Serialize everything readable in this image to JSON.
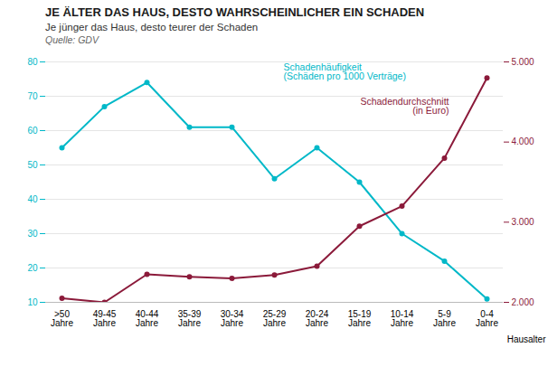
{
  "chart_data": {
    "type": "line",
    "title": "JE ÄLTER DAS HAUS, DESTO WAHRSCHEINLICHER EIN SCHADEN",
    "subtitle": "Je jünger das Haus, desto teurer der Schaden",
    "source": "Quelle: GDV",
    "x_label": "Hausalter",
    "categories": [
      ">50\nJahre",
      "49-45\nJahre",
      "40-44\nJahre",
      "35-39\nJahre",
      "30-34\nJahre",
      "25-29\nJahre",
      "20-24\nJahre",
      "15-19\nJahre",
      "10-14\nJahre",
      "5-9\nJahre",
      "0-4\nJahre"
    ],
    "series": [
      {
        "name": "Schadenhäufigkeit\n(Schäden pro 1000 Verträge)",
        "color": "#00B8C8",
        "marker": "circle",
        "values": [
          55,
          67,
          74,
          61,
          61,
          46,
          55,
          45,
          30,
          22,
          11
        ]
      },
      {
        "name": "Schadendurchschnitt\n(in Euro)",
        "color": "#8B1A3A",
        "marker": "circle",
        "axis": "y2",
        "values": [
          2050,
          2000,
          2350,
          2320,
          2300,
          2340,
          2450,
          2950,
          3200,
          3800,
          4800
        ]
      }
    ],
    "ylim": [
      10,
      80
    ],
    "yticks": [
      10,
      20,
      30,
      40,
      50,
      60,
      70,
      80
    ],
    "y2lim": [
      2000,
      5000
    ],
    "y2ticks": [
      {
        "value": 2000,
        "label": "2.000"
      },
      {
        "value": 3000,
        "label": "3.000"
      },
      {
        "value": 4000,
        "label": "4.000"
      },
      {
        "value": 5000,
        "label": "5.000"
      }
    ],
    "grid": true
  }
}
